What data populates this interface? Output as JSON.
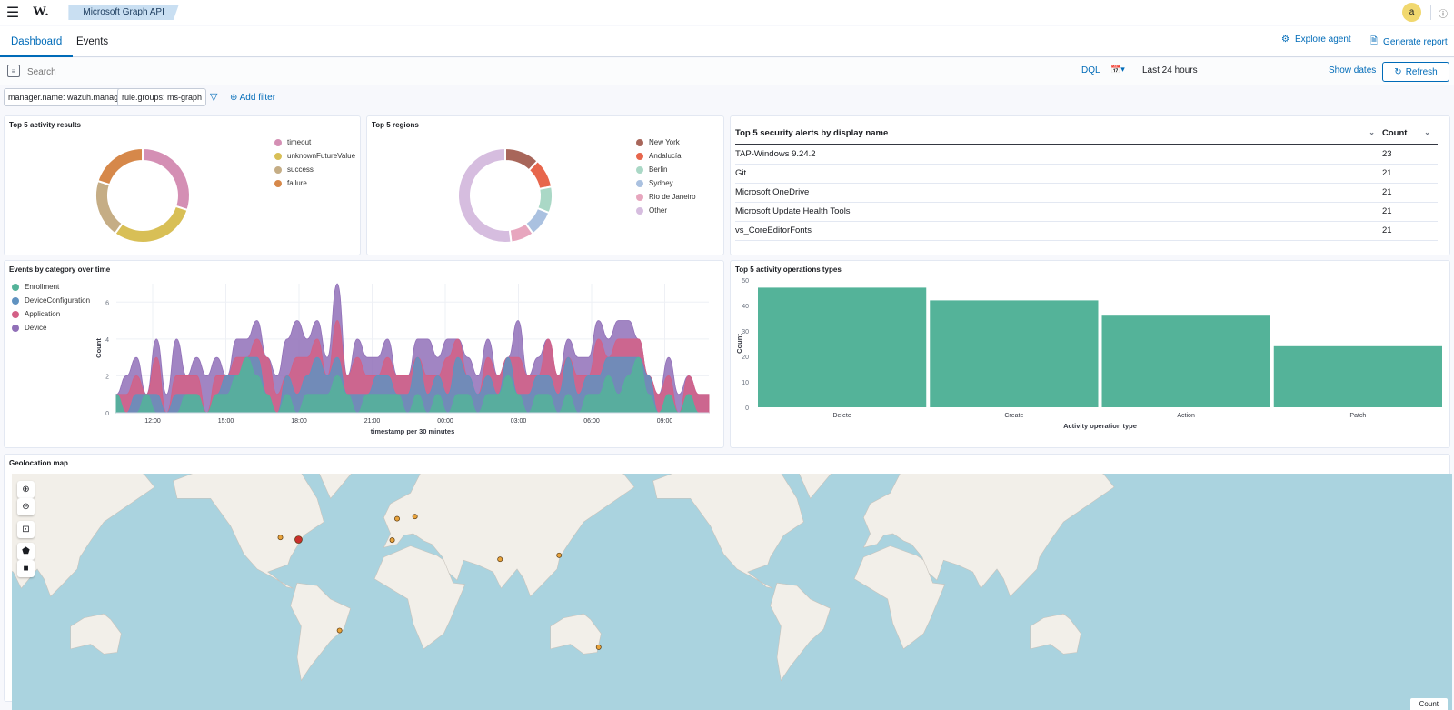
{
  "header": {
    "breadcrumb": "Microsoft Graph API",
    "avatar_letter": "a",
    "logo": "W."
  },
  "tabs": [
    "Dashboard",
    "Events"
  ],
  "actions": {
    "explore": "Explore agent",
    "report": "Generate report"
  },
  "query": {
    "placeholder": "Search",
    "language": "DQL",
    "date_range": "Last 24 hours",
    "show_dates": "Show dates",
    "refresh": "Refresh"
  },
  "filters": [
    "manager.name: wazuh.manager",
    "rule.groups: ms-graph"
  ],
  "add_filter": "Add filter",
  "panels": {
    "activity_results": "Top 5 activity results",
    "regions": "Top 5 regions",
    "alerts": "Top 5 security alerts by display name",
    "events_time": "Events by category over time",
    "operations": "Top 5 activity operations types",
    "geo": "Geolocation map"
  },
  "alerts_table": {
    "headers": [
      "Top 5 security alerts by display name",
      "Count"
    ],
    "rows": [
      [
        "TAP-Windows 9.24.2",
        "23"
      ],
      [
        "Git",
        "21"
      ],
      [
        "Microsoft OneDrive",
        "21"
      ],
      [
        "Microsoft Update Health Tools",
        "21"
      ],
      [
        "vs_CoreEditorFonts",
        "21"
      ]
    ]
  },
  "map": {
    "count_label": "Count"
  },
  "chart_data": [
    {
      "type": "pie",
      "title": "Top 5 activity results",
      "labels": [
        "timeout",
        "unknownFutureValue",
        "success",
        "failure"
      ],
      "values": [
        30,
        30,
        20,
        20
      ],
      "colors": [
        "#d48fb4",
        "#d8bf56",
        "#c5ad85",
        "#d6884a"
      ]
    },
    {
      "type": "pie",
      "title": "Top 5 regions",
      "labels": [
        "New York",
        "Andalucía",
        "Berlin",
        "Sydney",
        "Rio de Janeiro",
        "Other"
      ],
      "values": [
        12,
        10,
        9,
        9,
        8,
        52
      ],
      "colors": [
        "#a8665a",
        "#e7664c",
        "#aad8c6",
        "#aac1e0",
        "#e7a6be",
        "#d6bddf"
      ]
    },
    {
      "type": "area",
      "title": "Events by category over time",
      "xlabel": "timestamp per 30 minutes",
      "ylabel": "Count",
      "ylim": [
        0,
        7
      ],
      "yticks": [
        0,
        2,
        4,
        6
      ],
      "xticks": [
        "12:00",
        "15:00",
        "18:00",
        "21:00",
        "00:00",
        "03:00",
        "06:00",
        "09:00"
      ],
      "series": [
        {
          "name": "Enrollment",
          "color": "#54b399",
          "values": [
            1,
            0,
            0,
            1,
            0,
            0,
            0,
            1,
            1,
            0,
            1,
            1,
            2,
            3,
            2,
            1,
            0,
            1,
            0,
            1,
            1,
            1,
            2,
            1,
            0,
            1,
            1,
            1,
            1,
            0,
            1,
            0,
            1,
            0,
            1,
            1,
            0,
            1,
            1,
            2,
            1,
            0,
            1,
            1,
            0,
            1,
            0,
            1,
            1,
            2,
            1,
            2,
            3,
            1,
            0,
            1,
            0,
            1,
            0,
            0
          ]
        },
        {
          "name": "DeviceConfiguration",
          "color": "#6092c0",
          "values": [
            0,
            0,
            1,
            0,
            1,
            0,
            1,
            0,
            0,
            0,
            0,
            1,
            0,
            0,
            1,
            0,
            0,
            1,
            1,
            1,
            2,
            1,
            1,
            0,
            1,
            0,
            1,
            1,
            0,
            1,
            2,
            1,
            1,
            1,
            2,
            1,
            1,
            1,
            0,
            1,
            0,
            1,
            1,
            1,
            1,
            2,
            1,
            1,
            1,
            1,
            2,
            1,
            0,
            1,
            0,
            0,
            0,
            0,
            0,
            0
          ]
        },
        {
          "name": "Application",
          "color": "#d36086",
          "values": [
            0,
            1,
            1,
            0,
            2,
            0,
            1,
            1,
            1,
            0,
            1,
            0,
            1,
            0,
            1,
            2,
            1,
            0,
            2,
            1,
            1,
            0,
            2,
            1,
            2,
            1,
            0,
            1,
            1,
            1,
            0,
            1,
            0,
            2,
            1,
            0,
            0,
            1,
            1,
            0,
            2,
            1,
            0,
            2,
            1,
            0,
            1,
            0,
            2,
            0,
            1,
            1,
            1,
            0,
            1,
            1,
            0,
            1,
            1,
            1
          ]
        },
        {
          "name": "Device",
          "color": "#9170b8",
          "values": [
            0,
            1,
            1,
            0,
            1,
            1,
            2,
            0,
            1,
            2,
            1,
            0,
            1,
            1,
            1,
            0,
            1,
            2,
            2,
            1,
            1,
            1,
            2,
            0,
            1,
            1,
            1,
            1,
            0,
            0,
            1,
            2,
            1,
            1,
            0,
            1,
            1,
            1,
            0,
            0,
            2,
            0,
            1,
            0,
            0,
            1,
            1,
            1,
            1,
            1,
            1,
            1,
            0,
            0,
            0,
            1,
            1,
            0,
            0,
            0
          ]
        }
      ]
    },
    {
      "type": "bar",
      "title": "Top 5 activity operations types",
      "categories": [
        "Delete",
        "Create",
        "Action",
        "Patch"
      ],
      "values": [
        47,
        42,
        36,
        24
      ],
      "xlabel": "Activity operation type",
      "ylabel": "Count",
      "ylim": [
        0,
        50
      ],
      "yticks": [
        0,
        10,
        20,
        30,
        40,
        50
      ],
      "color": "#54b399"
    }
  ],
  "geo_points": [
    {
      "lon": -87.6,
      "lat": 41.9,
      "size": "small"
    },
    {
      "lon": -74.0,
      "lat": 40.7,
      "size": "large"
    },
    {
      "lon": -3.7,
      "lat": 40.4,
      "size": "small"
    },
    {
      "lon": 13.4,
      "lat": 52.5,
      "size": "small"
    },
    {
      "lon": 0.0,
      "lat": 51.5,
      "size": "small"
    },
    {
      "lon": 77.2,
      "lat": 28.6,
      "size": "small"
    },
    {
      "lon": 121.5,
      "lat": 31.2,
      "size": "small"
    },
    {
      "lon": -43.2,
      "lat": -22.9,
      "size": "small"
    },
    {
      "lon": 151.2,
      "lat": -33.9,
      "size": "small"
    }
  ]
}
